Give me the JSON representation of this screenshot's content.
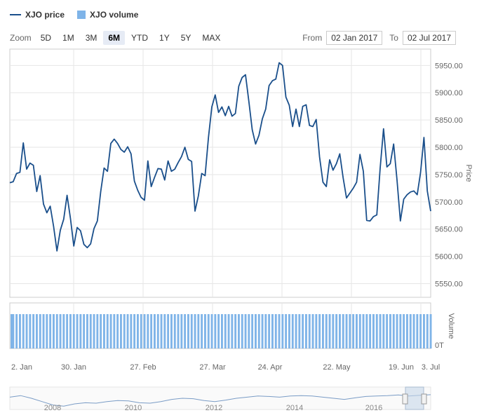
{
  "legend": {
    "price_label": "XJO price",
    "volume_label": "XJO volume"
  },
  "range_selector": {
    "zoom_label": "Zoom",
    "buttons": [
      "5D",
      "1M",
      "3M",
      "6M",
      "YTD",
      "1Y",
      "5Y",
      "MAX"
    ],
    "active": "6M",
    "from_label": "From",
    "from_value": "02 Jan 2017",
    "to_label": "To",
    "to_value": "02 Jul 2017"
  },
  "colors": {
    "price_line": "#1a4f8b",
    "volume_bar": "#7fb4e8",
    "grid": "#e6e6e6",
    "navigator_mask": "#c7d7ea"
  },
  "chart_data": {
    "type": "line",
    "price_axis": {
      "title": "Price",
      "ylim": [
        5525,
        5980
      ],
      "ticks": [
        "5550.00",
        "5600.00",
        "5650.00",
        "5700.00",
        "5750.00",
        "5800.00",
        "5850.00",
        "5900.00",
        "5950.00"
      ]
    },
    "volume_axis": {
      "title": "Volume",
      "ticks": [
        "0T"
      ]
    },
    "x_tick_labels": [
      "2. Jan",
      "30. Jan",
      "27. Feb",
      "27. Mar",
      "24. Apr",
      "22. May",
      "19. Jun",
      "3. Jul"
    ],
    "series": [
      {
        "name": "XJO price",
        "values": [
          5735,
          5737,
          5752,
          5754,
          5808,
          5760,
          5771,
          5767,
          5719,
          5748,
          5696,
          5680,
          5692,
          5655,
          5610,
          5648,
          5668,
          5712,
          5670,
          5619,
          5653,
          5647,
          5622,
          5616,
          5623,
          5651,
          5665,
          5719,
          5762,
          5756,
          5807,
          5815,
          5807,
          5796,
          5791,
          5801,
          5788,
          5738,
          5721,
          5708,
          5703,
          5775,
          5728,
          5745,
          5761,
          5760,
          5740,
          5775,
          5756,
          5760,
          5772,
          5783,
          5800,
          5778,
          5774,
          5683,
          5711,
          5752,
          5748,
          5818,
          5874,
          5896,
          5864,
          5874,
          5858,
          5875,
          5857,
          5862,
          5912,
          5928,
          5933,
          5884,
          5832,
          5806,
          5822,
          5852,
          5870,
          5913,
          5922,
          5925,
          5955,
          5950,
          5892,
          5877,
          5838,
          5870,
          5838,
          5875,
          5878,
          5840,
          5838,
          5851,
          5782,
          5736,
          5728,
          5777,
          5758,
          5770,
          5788,
          5744,
          5707,
          5716,
          5725,
          5736,
          5787,
          5756,
          5666,
          5665,
          5673,
          5676,
          5762,
          5834,
          5764,
          5770,
          5806,
          5740,
          5665,
          5705,
          5713,
          5718,
          5720,
          5713,
          5754,
          5818,
          5720,
          5683
        ]
      },
      {
        "name": "XJO volume",
        "note_values_uniform": true,
        "values": [
          1,
          1,
          1,
          1,
          1,
          1,
          1,
          1,
          1,
          1,
          1,
          1,
          1,
          1,
          1,
          1,
          1,
          1,
          1,
          1,
          1,
          1,
          1,
          1,
          1,
          1,
          1,
          1,
          1,
          1,
          1,
          1,
          1,
          1,
          1,
          1,
          1,
          1,
          1,
          1,
          1,
          1,
          1,
          1,
          1,
          1,
          1,
          1,
          1,
          1,
          1,
          1,
          1,
          1,
          1,
          1,
          1,
          1,
          1,
          1,
          1,
          1,
          1,
          1,
          1,
          1,
          1,
          1,
          1,
          1,
          1,
          1,
          1,
          1,
          1,
          1,
          1,
          1,
          1,
          1,
          1,
          1,
          1,
          1,
          1,
          1,
          1,
          1,
          1,
          1,
          1,
          1,
          1,
          1,
          1,
          1,
          1,
          1,
          1,
          1,
          1,
          1,
          1,
          1,
          1,
          1,
          1,
          1,
          1,
          1,
          1,
          1,
          1,
          1,
          1,
          1,
          1,
          1,
          1,
          1,
          1,
          1,
          1,
          1,
          1,
          1
        ]
      }
    ],
    "navigator": {
      "x_tick_labels": [
        "2008",
        "2010",
        "2012",
        "2014",
        "2016"
      ],
      "selected_range": "6M"
    }
  }
}
